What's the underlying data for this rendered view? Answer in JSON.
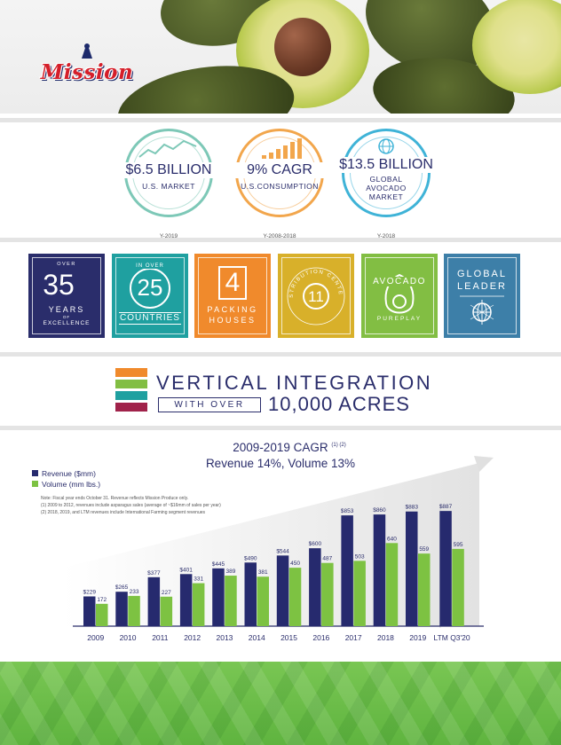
{
  "brand": {
    "logo_text": "Mission"
  },
  "stats": [
    {
      "main": "$6.5 BILLION",
      "sub": "U.S. MARKET",
      "year": "Y-2019",
      "color": "#7dc8b7"
    },
    {
      "main": "9% CAGR",
      "sub": "U.S.CONSUMPTION",
      "year": "Y-2008-2018",
      "color": "#f2a64c"
    },
    {
      "main": "$13.5 BILLION",
      "sub_lines": [
        "GLOBAL",
        "AVOCADO",
        "MARKET"
      ],
      "year": "Y-2018",
      "color": "#3fb3d7"
    }
  ],
  "tiles": {
    "years": {
      "top": "OVER",
      "number": "35",
      "word": "YEARS",
      "of": "OF",
      "bottom": "EXCELLENCE",
      "color": "#2a2d6b"
    },
    "countries": {
      "top": "IN OVER",
      "number": "25",
      "bottom": "COUNTRIES",
      "color": "#1fa0a0"
    },
    "packing": {
      "number": "4",
      "line1": "PACKING",
      "line2": "HOUSES",
      "color": "#f08a2c"
    },
    "distribution": {
      "number": "11",
      "arc": "DISTRIBUTION CENTERS",
      "color": "#d8b02a"
    },
    "pureplay": {
      "line1": "AVOCADO",
      "line2": "PUREPLAY",
      "color": "#82be43"
    },
    "global": {
      "line1": "GLOBAL",
      "line2": "LEADER",
      "color": "#3d7fa8"
    }
  },
  "vertical": {
    "title": "VERTICAL INTEGRATION",
    "with_over": "WITH OVER",
    "acres": "10,000 ACRES",
    "bar_colors": [
      "#f08a2c",
      "#82be43",
      "#1fa0a0",
      "#a0224a"
    ]
  },
  "chart_data": {
    "type": "bar",
    "title": "2009-2019 CAGR",
    "title_sup": "(1) (2)",
    "subtitle": "Revenue 14%, Volume 13%",
    "categories": [
      "2009",
      "2010",
      "2011",
      "2012",
      "2013",
      "2014",
      "2015",
      "2016",
      "2017",
      "2018",
      "2019",
      "LTM Q3'20"
    ],
    "series": [
      {
        "name": "Revenue ($mm)",
        "color": "#262a6e",
        "labels": [
          "$229",
          "$265",
          "$377",
          "$401",
          "$445",
          "$490",
          "$544",
          "$600",
          "$853",
          "$860",
          "$883",
          "$887"
        ],
        "values": [
          229,
          265,
          377,
          401,
          445,
          490,
          544,
          600,
          853,
          860,
          883,
          887
        ]
      },
      {
        "name": "Volume (mm lbs.)",
        "color": "#7dc242",
        "labels": [
          "172",
          "233",
          "227",
          "331",
          "389",
          "381",
          "450",
          "487",
          "503",
          "640",
          "559",
          "595"
        ],
        "values": [
          172,
          233,
          227,
          331,
          389,
          381,
          450,
          487,
          503,
          640,
          559,
          595
        ]
      }
    ],
    "ylim": [
      0,
      1000
    ],
    "grid": false,
    "legend": "top-left",
    "notes": [
      "Note: Fiscal year ends October 31. Revenue reflects Mission Produce only.",
      "(1) 2009 to 2012, revenues include asparagus sales (average of ~$16mm of sales per year)",
      "(2) 2018, 2019, and LTM revenues include International Farming segment revenues"
    ]
  }
}
